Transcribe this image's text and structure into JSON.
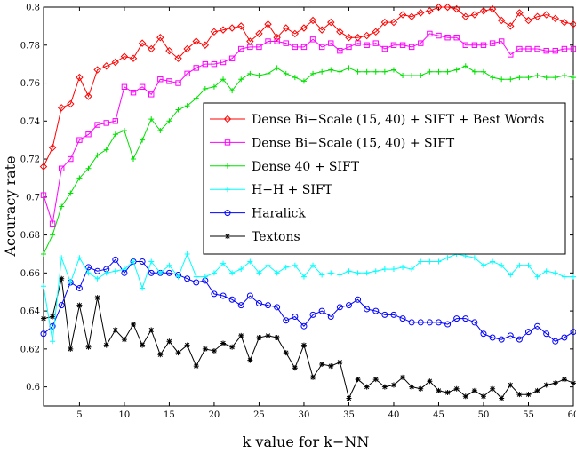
{
  "chart_data": {
    "type": "line",
    "title": "",
    "xlabel": "k value for k−NN",
    "ylabel": "Accuracy rate",
    "xlim": [
      1,
      60
    ],
    "ylim": [
      0.59,
      0.8
    ],
    "xticks": [
      5,
      10,
      15,
      20,
      25,
      30,
      35,
      40,
      45,
      50,
      55,
      60
    ],
    "xtick_labels": [
      "5",
      "10",
      "15",
      "20",
      "25",
      "30",
      "35",
      "40",
      "45",
      "50",
      "55",
      "60"
    ],
    "yticks": [
      0.6,
      0.62,
      0.64,
      0.66,
      0.68,
      0.7,
      0.72,
      0.74,
      0.76,
      0.78,
      0.8
    ],
    "ytick_labels": [
      "0.6",
      "0.62",
      "0.64",
      "0.66",
      "0.68",
      "0.7",
      "0.72",
      "0.74",
      "0.76",
      "0.78",
      "0.8"
    ],
    "grid": false,
    "legend_position": "center-right",
    "x": [
      1,
      2,
      3,
      4,
      5,
      6,
      7,
      8,
      9,
      10,
      11,
      12,
      13,
      14,
      15,
      16,
      17,
      18,
      19,
      20,
      21,
      22,
      23,
      24,
      25,
      26,
      27,
      28,
      29,
      30,
      31,
      32,
      33,
      34,
      35,
      36,
      37,
      38,
      39,
      40,
      41,
      42,
      43,
      44,
      45,
      46,
      47,
      48,
      49,
      50,
      51,
      52,
      53,
      54,
      55,
      56,
      57,
      58,
      59,
      60
    ],
    "series": [
      {
        "name": "Dense Bi−Scale (15, 40) + SIFT + Best Words",
        "color": "#ff0000",
        "marker": "diamond",
        "values": [
          0.716,
          0.726,
          0.747,
          0.749,
          0.763,
          0.753,
          0.767,
          0.769,
          0.771,
          0.774,
          0.773,
          0.781,
          0.778,
          0.784,
          0.777,
          0.773,
          0.778,
          0.782,
          0.78,
          0.787,
          0.788,
          0.789,
          0.79,
          0.782,
          0.786,
          0.791,
          0.784,
          0.789,
          0.786,
          0.789,
          0.793,
          0.788,
          0.792,
          0.787,
          0.784,
          0.784,
          0.785,
          0.787,
          0.792,
          0.792,
          0.796,
          0.795,
          0.797,
          0.798,
          0.8,
          0.8,
          0.799,
          0.795,
          0.796,
          0.798,
          0.799,
          0.793,
          0.79,
          0.797,
          0.793,
          0.795,
          0.796,
          0.794,
          0.792,
          0.791
        ]
      },
      {
        "name": "Dense Bi−Scale (15, 40) + SIFT",
        "color": "#ff00ff",
        "marker": "square",
        "values": [
          0.701,
          0.686,
          0.715,
          0.72,
          0.73,
          0.733,
          0.738,
          0.739,
          0.74,
          0.758,
          0.755,
          0.758,
          0.754,
          0.762,
          0.761,
          0.76,
          0.765,
          0.768,
          0.77,
          0.77,
          0.771,
          0.773,
          0.778,
          0.779,
          0.779,
          0.782,
          0.782,
          0.781,
          0.779,
          0.779,
          0.783,
          0.779,
          0.781,
          0.777,
          0.779,
          0.781,
          0.78,
          0.781,
          0.778,
          0.78,
          0.78,
          0.779,
          0.781,
          0.786,
          0.785,
          0.784,
          0.784,
          0.78,
          0.78,
          0.78,
          0.781,
          0.782,
          0.775,
          0.778,
          0.778,
          0.778,
          0.777,
          0.777,
          0.778,
          0.778
        ]
      },
      {
        "name": "Dense 40 + SIFT",
        "color": "#00e000",
        "marker": "plus",
        "values": [
          0.67,
          0.68,
          0.695,
          0.702,
          0.71,
          0.715,
          0.722,
          0.725,
          0.733,
          0.735,
          0.72,
          0.73,
          0.741,
          0.735,
          0.74,
          0.746,
          0.748,
          0.752,
          0.757,
          0.758,
          0.762,
          0.756,
          0.762,
          0.765,
          0.764,
          0.765,
          0.768,
          0.765,
          0.763,
          0.761,
          0.765,
          0.766,
          0.767,
          0.766,
          0.768,
          0.766,
          0.766,
          0.766,
          0.766,
          0.767,
          0.764,
          0.764,
          0.764,
          0.766,
          0.766,
          0.766,
          0.767,
          0.769,
          0.766,
          0.766,
          0.763,
          0.762,
          0.762,
          0.763,
          0.763,
          0.764,
          0.763,
          0.763,
          0.764,
          0.763
        ]
      },
      {
        "name": "H−H + SIFT",
        "color": "#00ffff",
        "marker": "plus",
        "values": [
          0.653,
          0.624,
          0.668,
          0.655,
          0.668,
          0.66,
          0.657,
          0.66,
          0.661,
          0.662,
          0.666,
          0.652,
          0.666,
          0.66,
          0.664,
          0.658,
          0.67,
          0.658,
          0.658,
          0.66,
          0.665,
          0.66,
          0.662,
          0.666,
          0.66,
          0.664,
          0.66,
          0.663,
          0.664,
          0.658,
          0.664,
          0.659,
          0.66,
          0.659,
          0.661,
          0.66,
          0.66,
          0.661,
          0.662,
          0.662,
          0.663,
          0.662,
          0.666,
          0.666,
          0.666,
          0.668,
          0.67,
          0.669,
          0.668,
          0.664,
          0.666,
          0.664,
          0.659,
          0.664,
          0.664,
          0.658,
          0.661,
          0.66,
          0.658,
          0.658
        ]
      },
      {
        "name": "Haralick",
        "color": "#0000ff",
        "marker": "circle",
        "values": [
          0.628,
          0.632,
          0.643,
          0.655,
          0.652,
          0.663,
          0.661,
          0.662,
          0.667,
          0.66,
          0.666,
          0.666,
          0.66,
          0.66,
          0.66,
          0.659,
          0.657,
          0.655,
          0.656,
          0.649,
          0.648,
          0.646,
          0.643,
          0.648,
          0.644,
          0.643,
          0.642,
          0.635,
          0.637,
          0.632,
          0.638,
          0.64,
          0.637,
          0.642,
          0.643,
          0.646,
          0.641,
          0.64,
          0.638,
          0.638,
          0.636,
          0.634,
          0.634,
          0.634,
          0.634,
          0.633,
          0.636,
          0.636,
          0.634,
          0.628,
          0.626,
          0.625,
          0.627,
          0.625,
          0.629,
          0.632,
          0.628,
          0.624,
          0.626,
          0.629
        ]
      },
      {
        "name": "Textons",
        "color": "#000000",
        "marker": "star",
        "values": [
          0.636,
          0.637,
          0.657,
          0.62,
          0.643,
          0.621,
          0.647,
          0.622,
          0.63,
          0.625,
          0.633,
          0.622,
          0.63,
          0.617,
          0.624,
          0.618,
          0.622,
          0.611,
          0.62,
          0.619,
          0.623,
          0.621,
          0.627,
          0.614,
          0.626,
          0.627,
          0.626,
          0.618,
          0.61,
          0.622,
          0.605,
          0.612,
          0.611,
          0.613,
          0.594,
          0.604,
          0.6,
          0.604,
          0.6,
          0.601,
          0.605,
          0.6,
          0.599,
          0.603,
          0.598,
          0.597,
          0.599,
          0.595,
          0.598,
          0.595,
          0.599,
          0.594,
          0.601,
          0.596,
          0.596,
          0.598,
          0.601,
          0.602,
          0.604,
          0.602
        ]
      }
    ]
  }
}
